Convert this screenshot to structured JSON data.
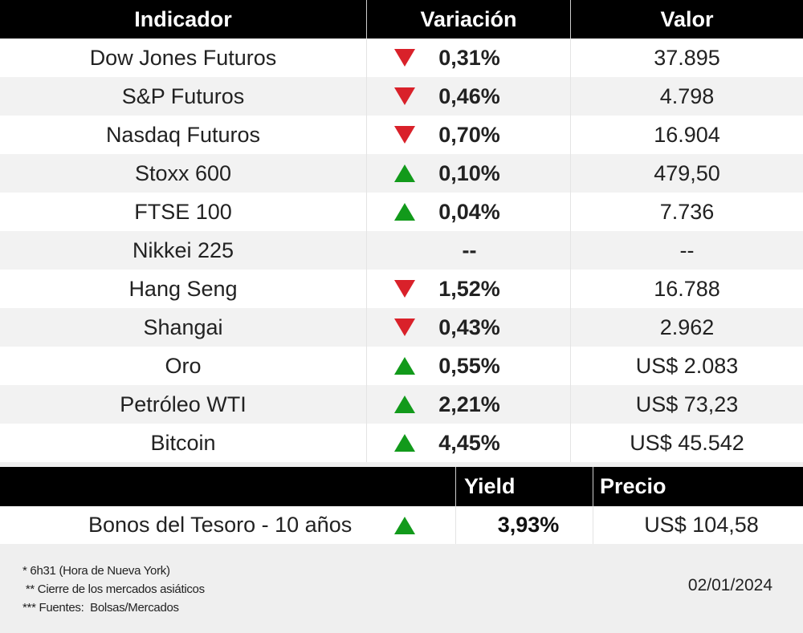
{
  "header": {
    "col1": "Indicador",
    "col2": "Variación",
    "col3": "Valor"
  },
  "rows": [
    {
      "name": "Dow Jones Futuros",
      "dir": "down",
      "var": "0,31%",
      "value": "37.895"
    },
    {
      "name": "S&P Futuros",
      "dir": "down",
      "var": "0,46%",
      "value": "4.798"
    },
    {
      "name": "Nasdaq Futuros",
      "dir": "down",
      "var": "0,70%",
      "value": "16.904"
    },
    {
      "name": "Stoxx 600",
      "dir": "up",
      "var": "0,10%",
      "value": "479,50"
    },
    {
      "name": "FTSE 100",
      "dir": "up",
      "var": "0,04%",
      "value": "7.736"
    },
    {
      "name": "Nikkei 225",
      "dir": "none",
      "var": "--",
      "value": "--"
    },
    {
      "name": "Hang Seng",
      "dir": "down",
      "var": "1,52%",
      "value": "16.788"
    },
    {
      "name": "Shangai",
      "dir": "down",
      "var": "0,43%",
      "value": "2.962"
    },
    {
      "name": "Oro",
      "dir": "up",
      "var": "0,55%",
      "value": "US$ 2.083"
    },
    {
      "name": "Petróleo WTI",
      "dir": "up",
      "var": "2,21%",
      "value": "US$ 73,23"
    },
    {
      "name": "Bitcoin",
      "dir": "up",
      "var": "4,45%",
      "value": "US$ 45.542"
    }
  ],
  "bonds": {
    "header": {
      "col1": "",
      "yield": "Yield",
      "price": "Precio"
    },
    "row": {
      "name": "Bonos del Tesoro - 10 años",
      "dir": "up",
      "yield": "3,93%",
      "price": "US$ 104,58"
    }
  },
  "footer": {
    "notes": [
      "* 6h31 (Hora de Nueva York)",
      " ** Cierre de los mercados asiáticos",
      "*** Fuentes:  Bolsas/Mercados"
    ],
    "date": "02/01/2024"
  },
  "colors": {
    "down": "#d9212a",
    "up": "#129a1b",
    "header_bg": "#000000"
  },
  "chart_data": {
    "type": "table",
    "title": "",
    "columns": [
      "Indicador",
      "Variación",
      "Valor"
    ],
    "rows": [
      [
        "Dow Jones Futuros",
        "-0,31%",
        "37.895"
      ],
      [
        "S&P Futuros",
        "-0,46%",
        "4.798"
      ],
      [
        "Nasdaq Futuros",
        "-0,70%",
        "16.904"
      ],
      [
        "Stoxx 600",
        "+0,10%",
        "479,50"
      ],
      [
        "FTSE 100",
        "+0,04%",
        "7.736"
      ],
      [
        "Nikkei 225",
        "--",
        "--"
      ],
      [
        "Hang Seng",
        "-1,52%",
        "16.788"
      ],
      [
        "Shangai",
        "-0,43%",
        "2.962"
      ],
      [
        "Oro",
        "+0,55%",
        "US$ 2.083"
      ],
      [
        "Petróleo WTI",
        "+2,21%",
        "US$ 73,23"
      ],
      [
        "Bitcoin",
        "+4,45%",
        "US$ 45.542"
      ]
    ],
    "bond_table": {
      "columns": [
        "",
        "Yield",
        "Precio"
      ],
      "rows": [
        [
          "Bonos del Tesoro - 10 años",
          "+3,93%",
          "US$ 104,58"
        ]
      ]
    }
  }
}
